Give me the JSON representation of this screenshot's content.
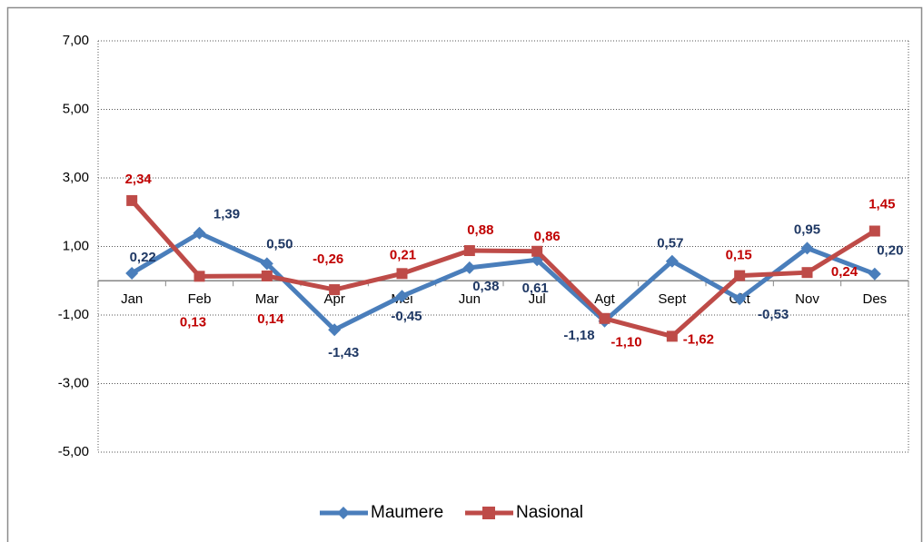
{
  "chart_data": {
    "type": "line",
    "categories": [
      "Jan",
      "Feb",
      "Mar",
      "Apr",
      "Mei",
      "Jun",
      "Jul",
      "Agt",
      "Sept",
      "Okt",
      "Nov",
      "Des"
    ],
    "series": [
      {
        "name": "Maumere",
        "color": "#4a7ebb",
        "label_color": "#1f3864",
        "marker": "diamond",
        "values": [
          0.22,
          1.39,
          0.5,
          -1.43,
          -0.45,
          0.38,
          0.61,
          -1.18,
          0.57,
          -0.53,
          0.95,
          0.2
        ],
        "value_labels": [
          "0,22",
          "1,39",
          "0,50",
          "-1,43",
          "-0,45",
          "0,38",
          "0,61",
          "-1,18",
          "0,57",
          "-0,53",
          "0,95",
          "0,20"
        ]
      },
      {
        "name": "Nasional",
        "color": "#be4b48",
        "label_color": "#c00000",
        "marker": "square",
        "values": [
          2.34,
          0.13,
          0.14,
          -0.26,
          0.21,
          0.88,
          0.86,
          -1.1,
          -1.62,
          0.15,
          0.24,
          1.45
        ],
        "value_labels": [
          "2,34",
          "0,13",
          "0,14",
          "-0,26",
          "0,21",
          "0,88",
          "0,86",
          "-1,10",
          "-1,62",
          "0,15",
          "0,24",
          "1,45"
        ]
      }
    ],
    "ylim": [
      -5,
      7
    ],
    "yticks": [
      {
        "value": -5,
        "label": "-5,00"
      },
      {
        "value": -3,
        "label": "-3,00"
      },
      {
        "value": -1,
        "label": "-1,00"
      },
      {
        "value": 1,
        "label": "1,00"
      },
      {
        "value": 3,
        "label": "3,00"
      },
      {
        "value": 5,
        "label": "5,00"
      },
      {
        "value": 7,
        "label": "7,00"
      }
    ],
    "grid": true,
    "legend": "bottom"
  }
}
